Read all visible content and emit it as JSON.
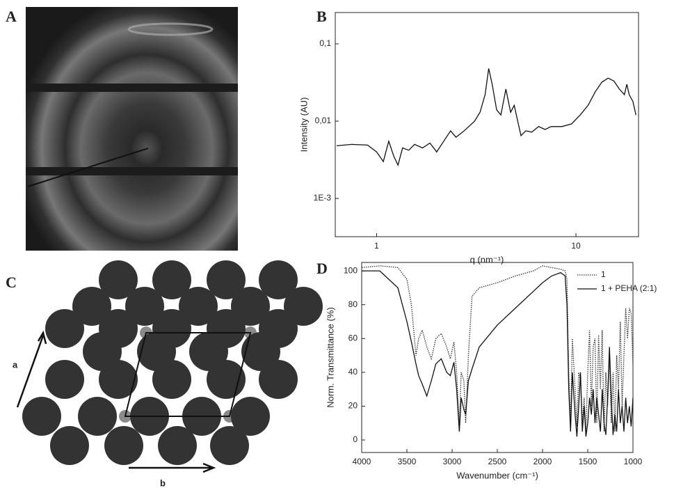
{
  "panel_labels": [
    "A",
    "B",
    "C",
    "D"
  ],
  "lattice": {
    "axis_a": "a",
    "axis_b": "b"
  },
  "chart_data": [
    {
      "type": "line",
      "xlabel": "q (nm⁻¹)",
      "ylabel": "Intensity (AU)",
      "xlog": true,
      "ylog": true,
      "color": "#111111",
      "x": [
        0.63,
        0.75,
        0.9,
        1.0,
        1.08,
        1.15,
        1.22,
        1.28,
        1.35,
        1.45,
        1.55,
        1.7,
        1.85,
        2.0,
        2.2,
        2.35,
        2.5,
        2.7,
        2.9,
        3.1,
        3.3,
        3.5,
        3.65,
        3.8,
        4.0,
        4.2,
        4.45,
        4.7,
        4.9,
        5.1,
        5.3,
        5.6,
        6.0,
        6.5,
        7.0,
        7.5,
        8.5,
        9.5,
        10.5,
        11.5,
        12.5,
        13.5,
        14.5,
        15.5,
        16.5,
        17.5,
        18.0,
        18.5,
        19.3,
        20.0
      ],
      "values": [
        0.0048,
        0.005,
        0.0049,
        0.004,
        0.003,
        0.0055,
        0.0035,
        0.0027,
        0.0045,
        0.0042,
        0.005,
        0.0045,
        0.0052,
        0.004,
        0.0058,
        0.0075,
        0.0062,
        0.0072,
        0.0085,
        0.01,
        0.013,
        0.022,
        0.048,
        0.03,
        0.014,
        0.012,
        0.026,
        0.013,
        0.016,
        0.01,
        0.0065,
        0.0075,
        0.0072,
        0.0085,
        0.0078,
        0.0085,
        0.0085,
        0.0092,
        0.012,
        0.016,
        0.024,
        0.032,
        0.036,
        0.033,
        0.026,
        0.022,
        0.03,
        0.022,
        0.018,
        0.012
      ],
      "xlim": [
        0.62,
        20.6
      ],
      "ylim": [
        0.00032,
        0.254
      ],
      "xticks": [
        1,
        10
      ],
      "yticks": [
        {
          "value": 0.001,
          "label": "1E-3"
        },
        {
          "value": 0.01,
          "label": "0,01"
        },
        {
          "value": 0.1,
          "label": "0,1"
        }
      ]
    },
    {
      "type": "line",
      "xlabel": "Wavenumber (cm⁻¹)",
      "ylabel": "Norm. Transmittance (%)",
      "legend": "upper right",
      "x": [
        4000,
        3800,
        3600,
        3500,
        3450,
        3400,
        3370,
        3330,
        3280,
        3230,
        3180,
        3120,
        3060,
        3020,
        2980,
        2950,
        2920,
        2900,
        2870,
        2850,
        2820,
        2780,
        2700,
        2500,
        2300,
        2100,
        2000,
        1900,
        1800,
        1750,
        1730,
        1710,
        1690,
        1670,
        1640,
        1620,
        1600,
        1580,
        1560,
        1540,
        1520,
        1500,
        1480,
        1460,
        1440,
        1420,
        1400,
        1380,
        1360,
        1340,
        1320,
        1300,
        1280,
        1260,
        1240,
        1220,
        1200,
        1180,
        1160,
        1140,
        1120,
        1100,
        1080,
        1060,
        1040,
        1020,
        1000
      ],
      "series": [
        {
          "name": "1",
          "color": "#333333",
          "dash": "dotted",
          "values": [
            102,
            103,
            102,
            95,
            80,
            50,
            60,
            65,
            55,
            48,
            60,
            63,
            55,
            48,
            58,
            40,
            8,
            40,
            35,
            10,
            50,
            85,
            90,
            93,
            97,
            100,
            103,
            102,
            101,
            100,
            95,
            40,
            10,
            60,
            30,
            8,
            40,
            35,
            10,
            25,
            5,
            40,
            65,
            20,
            55,
            60,
            10,
            62,
            30,
            65,
            5,
            40,
            20,
            50,
            10,
            40,
            5,
            50,
            30,
            70,
            20,
            50,
            78,
            60,
            78,
            75,
            45
          ]
        },
        {
          "name": "1 + PEHA (2:1)",
          "color": "#111111",
          "dash": "solid",
          "values": [
            100,
            100,
            90,
            70,
            58,
            45,
            38,
            33,
            26,
            35,
            45,
            48,
            40,
            38,
            46,
            30,
            5,
            25,
            18,
            15,
            35,
            42,
            55,
            68,
            78,
            88,
            93,
            97,
            99,
            97,
            80,
            30,
            5,
            40,
            15,
            2,
            20,
            40,
            5,
            20,
            2,
            10,
            25,
            15,
            30,
            10,
            25,
            15,
            5,
            30,
            10,
            3,
            25,
            55,
            25,
            3,
            15,
            5,
            30,
            10,
            20,
            5,
            25,
            10,
            20,
            8,
            25
          ]
        }
      ],
      "xlim": [
        4000,
        1000
      ],
      "ylim": [
        -7.4,
        105
      ],
      "xticks": [
        4000,
        3500,
        3000,
        2500,
        2000,
        1500,
        1000
      ],
      "yticks": [
        0,
        20,
        40,
        60,
        80,
        100
      ]
    }
  ]
}
